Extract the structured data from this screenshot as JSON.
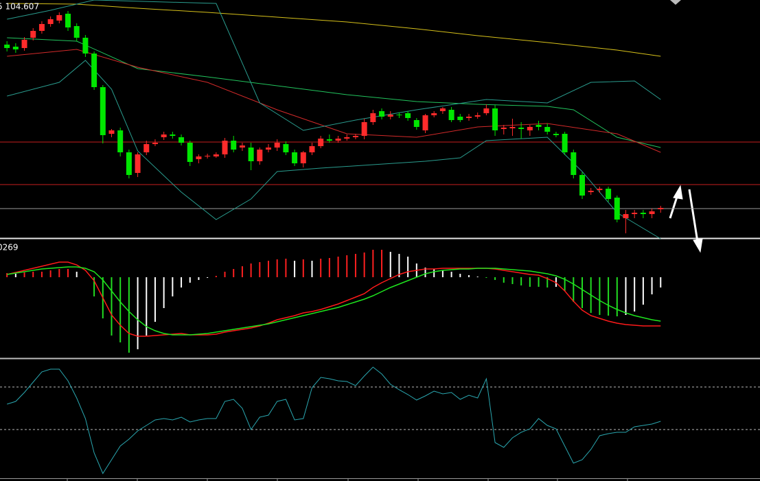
{
  "chart_data": [
    {
      "type": "candlestick",
      "label": "5 104.607",
      "xlim": [
        -0.8,
        86.4
      ],
      "ylim": [
        0,
        348
      ],
      "up_color": "#ff2b2b",
      "down_color": "#00e600",
      "candles": [
        [
          283,
          288,
          273,
          278
        ],
        [
          280,
          285,
          271,
          276
        ],
        [
          278,
          294,
          274,
          290
        ],
        [
          293,
          307,
          289,
          303
        ],
        [
          303,
          317,
          299,
          313
        ],
        [
          313,
          324,
          309,
          320
        ],
        [
          318,
          330,
          314,
          326
        ],
        [
          328,
          332,
          303,
          308
        ],
        [
          310,
          314,
          288,
          293
        ],
        [
          293,
          297,
          265,
          270
        ],
        [
          270,
          273,
          217,
          221
        ],
        [
          221,
          224,
          139,
          151
        ],
        [
          153,
          160,
          148,
          158
        ],
        [
          158,
          162,
          120,
          126
        ],
        [
          126,
          130,
          88,
          93
        ],
        [
          96,
          126,
          90,
          123
        ],
        [
          126,
          143,
          122,
          138
        ],
        [
          138,
          145,
          135,
          140
        ],
        [
          148,
          156,
          144,
          152
        ],
        [
          152,
          156,
          146,
          150
        ],
        [
          148,
          152,
          136,
          140
        ],
        [
          140,
          143,
          106,
          112
        ],
        [
          116,
          123,
          110,
          120
        ],
        [
          120,
          124,
          117,
          121
        ],
        [
          120,
          126,
          118,
          123
        ],
        [
          123,
          147,
          118,
          143
        ],
        [
          143,
          150,
          126,
          130
        ],
        [
          133,
          140,
          128,
          136
        ],
        [
          133,
          140,
          100,
          113
        ],
        [
          113,
          133,
          108,
          130
        ],
        [
          130,
          138,
          126,
          133
        ],
        [
          133,
          145,
          128,
          140
        ],
        [
          138,
          142,
          122,
          126
        ],
        [
          126,
          130,
          106,
          110
        ],
        [
          110,
          128,
          104,
          126
        ],
        [
          126,
          140,
          122,
          135
        ],
        [
          135,
          150,
          132,
          146
        ],
        [
          145,
          152,
          140,
          143
        ],
        [
          143,
          150,
          140,
          146
        ],
        [
          146,
          152,
          143,
          148
        ],
        [
          148,
          153,
          145,
          150
        ],
        [
          150,
          175,
          145,
          170
        ],
        [
          170,
          188,
          166,
          183
        ],
        [
          186,
          190,
          174,
          178
        ],
        [
          178,
          186,
          174,
          181
        ],
        [
          181,
          184,
          176,
          180
        ],
        [
          183,
          186,
          172,
          176
        ],
        [
          173,
          176,
          159,
          163
        ],
        [
          158,
          182,
          154,
          180
        ],
        [
          180,
          186,
          177,
          183
        ],
        [
          186,
          192,
          182,
          190
        ],
        [
          188,
          192,
          170,
          173
        ],
        [
          178,
          182,
          170,
          173
        ],
        [
          176,
          182,
          172,
          178
        ],
        [
          178,
          184,
          175,
          180
        ],
        [
          183,
          196,
          180,
          190
        ],
        [
          190,
          195,
          150,
          158
        ],
        [
          160,
          166,
          152,
          162
        ],
        [
          161,
          175,
          150,
          163
        ],
        [
          162,
          170,
          146,
          160
        ],
        [
          158,
          166,
          150,
          163
        ],
        [
          166,
          172,
          158,
          163
        ],
        [
          163,
          168,
          152,
          156
        ],
        [
          153,
          156,
          148,
          151
        ],
        [
          153,
          156,
          122,
          126
        ],
        [
          126,
          130,
          88,
          93
        ],
        [
          93,
          97,
          58,
          63
        ],
        [
          68,
          74,
          64,
          70
        ],
        [
          71,
          76,
          67,
          73
        ],
        [
          73,
          76,
          54,
          58
        ],
        [
          60,
          63,
          24,
          28
        ],
        [
          30,
          42,
          8,
          36
        ],
        [
          36,
          42,
          30,
          38
        ],
        [
          38,
          42,
          30,
          36
        ],
        [
          36,
          44,
          30,
          40
        ],
        [
          43,
          48,
          38,
          45
        ]
      ],
      "lines": [
        {
          "color": "#d8c21a",
          "x": [
            0,
            8,
            15,
            23,
            31,
            39,
            47,
            54,
            62,
            70,
            75
          ],
          "values": [
            343,
            342,
            336,
            330,
            323,
            316,
            306,
            296,
            286,
            275,
            266
          ]
        },
        {
          "color": "#22c55e",
          "x": [
            0,
            8,
            15,
            23,
            31,
            39,
            47,
            54,
            62,
            65,
            70,
            75
          ],
          "values": [
            293,
            288,
            248,
            236,
            223,
            210,
            200,
            196,
            193,
            188,
            148,
            133
          ]
        },
        {
          "color": "#d42a2a",
          "x": [
            0,
            8,
            15,
            23,
            31,
            39,
            47,
            54,
            62,
            70,
            75
          ],
          "values": [
            266,
            276,
            250,
            228,
            188,
            153,
            148,
            163,
            168,
            153,
            126
          ]
        },
        {
          "color": "#2a9d8f",
          "x": [
            0,
            5,
            10,
            24,
            29,
            34,
            40,
            47,
            55,
            62,
            67,
            72,
            75
          ],
          "values": [
            320,
            333,
            348,
            343,
            198,
            158,
            173,
            188,
            203,
            198,
            228,
            230,
            203
          ]
        },
        {
          "color": "#2a9d8f",
          "x": [
            0,
            6,
            9,
            12,
            15,
            20,
            24,
            28,
            31,
            36,
            42,
            48,
            52,
            55,
            62,
            66,
            70,
            75
          ],
          "values": [
            208,
            228,
            260,
            218,
            128,
            68,
            28,
            58,
            98,
            103,
            108,
            113,
            118,
            143,
            148,
            98,
            38,
            0
          ]
        }
      ],
      "hlines": [
        {
          "value": 141,
          "color": "#c81e1e"
        },
        {
          "value": 79,
          "color": "#c81e1e"
        },
        {
          "value": 44,
          "color": "#9a9a9a"
        }
      ]
    },
    {
      "type": "macd",
      "label": "0269",
      "xlim": [
        -0.8,
        86.4
      ],
      "ylim": [
        -118,
        54
      ],
      "up_color": "#ff2020",
      "down_color": "#22dd22",
      "fade_color": "#ffffff",
      "histogram": [
        6,
        5,
        7,
        8,
        8,
        10,
        12,
        12,
        8,
        0,
        -28,
        -60,
        -85,
        -95,
        -110,
        -105,
        -85,
        -65,
        -45,
        -28,
        -15,
        -8,
        -4,
        -1,
        2,
        8,
        12,
        16,
        20,
        22,
        24,
        26,
        27,
        24,
        26,
        24,
        27,
        28,
        30,
        32,
        34,
        36,
        40,
        40,
        37,
        34,
        30,
        20,
        14,
        12,
        10,
        8,
        5,
        3,
        1,
        -1,
        -4,
        -8,
        -10,
        -12,
        -14,
        -14,
        -15,
        -14,
        -20,
        -36,
        -45,
        -52,
        -55,
        -56,
        -57,
        -55,
        -50,
        -40,
        -25,
        -15
      ],
      "lines": [
        {
          "color": "#ff1a1a",
          "values": [
            4,
            7,
            10,
            13,
            16,
            19,
            22,
            22,
            18,
            10,
            -5,
            -30,
            -55,
            -70,
            -82,
            -86,
            -86,
            -85,
            -84,
            -83,
            -82,
            -84,
            -84,
            -84,
            -83,
            -80,
            -78,
            -76,
            -74,
            -71,
            -67,
            -62,
            -59,
            -56,
            -52,
            -50,
            -47,
            -43,
            -39,
            -34,
            -29,
            -24,
            -15,
            -8,
            -2,
            4,
            8,
            10,
            12,
            12,
            13,
            13,
            13,
            13,
            13,
            13,
            12,
            10,
            8,
            6,
            4,
            3,
            -2,
            -8,
            -20,
            -35,
            -48,
            -56,
            -60,
            -64,
            -67,
            -69,
            -70,
            -71,
            -71,
            -71
          ]
        },
        {
          "color": "#1ee61e",
          "values": [
            4,
            6,
            8,
            10,
            12,
            13,
            14,
            15,
            15,
            13,
            8,
            -4,
            -20,
            -36,
            -50,
            -62,
            -72,
            -78,
            -82,
            -84,
            -84,
            -84,
            -83,
            -82,
            -80,
            -78,
            -76,
            -74,
            -72,
            -70,
            -68,
            -65,
            -62,
            -59,
            -56,
            -53,
            -50,
            -47,
            -44,
            -40,
            -36,
            -32,
            -27,
            -21,
            -15,
            -10,
            -5,
            0,
            5,
            8,
            10,
            11,
            12,
            12,
            13,
            13,
            13,
            12,
            11,
            10,
            9,
            7,
            5,
            2,
            -3,
            -10,
            -18,
            -26,
            -34,
            -41,
            -47,
            -52,
            -56,
            -59,
            -62,
            -64
          ]
        }
      ]
    },
    {
      "type": "line",
      "xlim": [
        -0.8,
        86.4
      ],
      "ylim": [
        0,
        172
      ],
      "color": "#2aa7b0",
      "levels": [
        133,
        71
      ],
      "values": [
        108,
        112,
        125,
        140,
        155,
        159,
        159,
        142,
        117,
        87,
        37,
        7,
        27,
        47,
        57,
        69,
        77,
        85,
        87,
        85,
        89,
        82,
        85,
        87,
        87,
        112,
        115,
        102,
        71,
        89,
        92,
        112,
        115,
        85,
        87,
        132,
        147,
        145,
        142,
        141,
        135,
        149,
        162,
        152,
        137,
        129,
        122,
        114,
        120,
        127,
        123,
        125,
        115,
        121,
        117,
        145,
        52,
        45,
        59,
        67,
        72,
        87,
        77,
        72,
        47,
        22,
        27,
        42,
        62,
        65,
        67,
        67,
        75,
        77,
        79,
        83
      ]
    }
  ]
}
